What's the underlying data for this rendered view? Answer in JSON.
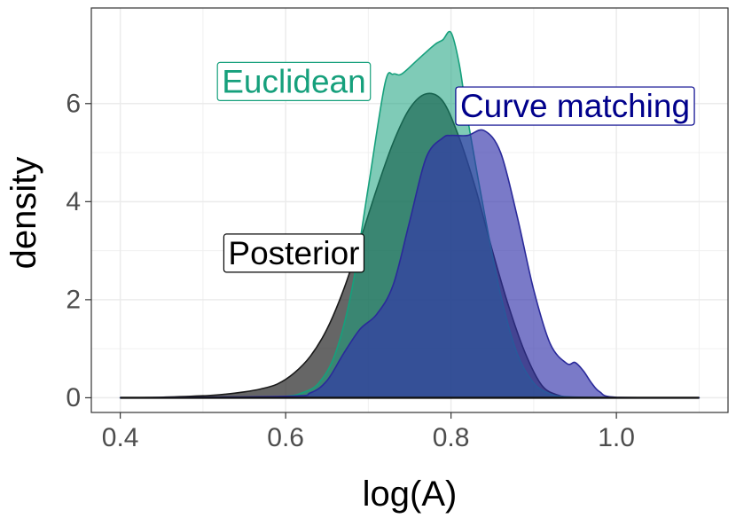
{
  "chart_data": {
    "type": "area",
    "chart_kind": "density",
    "xlabel": "log(A)",
    "ylabel": "density",
    "xlim": [
      0.365,
      1.135
    ],
    "ylim": [
      -0.3,
      7.95
    ],
    "xticks": [
      0.4,
      0.6,
      0.8,
      1.0
    ],
    "xtick_labels": [
      "0.4",
      "0.6",
      "0.8",
      "1.0"
    ],
    "yticks": [
      0,
      2,
      4,
      6
    ],
    "ytick_labels": [
      "0",
      "2",
      "4",
      "6"
    ],
    "grid": true,
    "legend": "none",
    "annotations": [
      {
        "text": "Euclidean",
        "color": "#16a07c",
        "x": 0.61,
        "y": 6.45
      },
      {
        "text": "Curve matching",
        "color": "#00008b",
        "x": 0.95,
        "y": 5.95
      },
      {
        "text": "Posterior",
        "color": "#000000",
        "x": 0.61,
        "y": 2.95
      }
    ],
    "series": [
      {
        "name": "Posterior",
        "fill": "#333333",
        "stroke": "#1a1a1a",
        "opacity": 0.75,
        "x": [
          0.4,
          0.45,
          0.5,
          0.52,
          0.55,
          0.57,
          0.59,
          0.61,
          0.63,
          0.65,
          0.67,
          0.69,
          0.71,
          0.73,
          0.75,
          0.77,
          0.79,
          0.81,
          0.83,
          0.85,
          0.87,
          0.89,
          0.91,
          0.93,
          0.95,
          1.0,
          1.1
        ],
        "y": [
          0,
          0.01,
          0.04,
          0.06,
          0.12,
          0.18,
          0.28,
          0.5,
          0.85,
          1.4,
          2.2,
          3.2,
          4.25,
          5.2,
          5.9,
          6.2,
          6.05,
          5.3,
          4.25,
          3.0,
          1.85,
          0.9,
          0.25,
          0.05,
          0.01,
          0,
          0
        ]
      },
      {
        "name": "Euclidean",
        "fill": "#16a07c",
        "stroke": "#16a07c",
        "opacity": 0.55,
        "x": [
          0.4,
          0.55,
          0.6,
          0.62,
          0.64,
          0.66,
          0.68,
          0.7,
          0.72,
          0.73,
          0.74,
          0.76,
          0.78,
          0.79,
          0.8,
          0.81,
          0.82,
          0.84,
          0.86,
          0.88,
          0.9,
          0.92,
          0.94,
          1.0,
          1.1
        ],
        "y": [
          0,
          0,
          0.03,
          0.1,
          0.3,
          0.9,
          2.2,
          4.3,
          6.4,
          6.6,
          6.6,
          6.9,
          7.2,
          7.3,
          7.45,
          6.8,
          5.7,
          3.8,
          2.1,
          0.9,
          0.3,
          0.08,
          0.02,
          0,
          0
        ]
      },
      {
        "name": "Curve matching",
        "fill": "#3333aa",
        "stroke": "#2a2a9a",
        "opacity": 0.65,
        "x": [
          0.4,
          0.6,
          0.63,
          0.65,
          0.67,
          0.69,
          0.71,
          0.73,
          0.75,
          0.77,
          0.79,
          0.8,
          0.82,
          0.84,
          0.86,
          0.88,
          0.9,
          0.92,
          0.94,
          0.95,
          0.96,
          0.97,
          0.98,
          1.0,
          1.1
        ],
        "y": [
          0,
          0.03,
          0.1,
          0.35,
          0.9,
          1.4,
          1.7,
          2.3,
          3.6,
          4.9,
          5.3,
          5.35,
          5.35,
          5.45,
          5.0,
          3.7,
          2.2,
          1.1,
          0.7,
          0.72,
          0.55,
          0.3,
          0.12,
          0.01,
          0
        ]
      }
    ]
  }
}
